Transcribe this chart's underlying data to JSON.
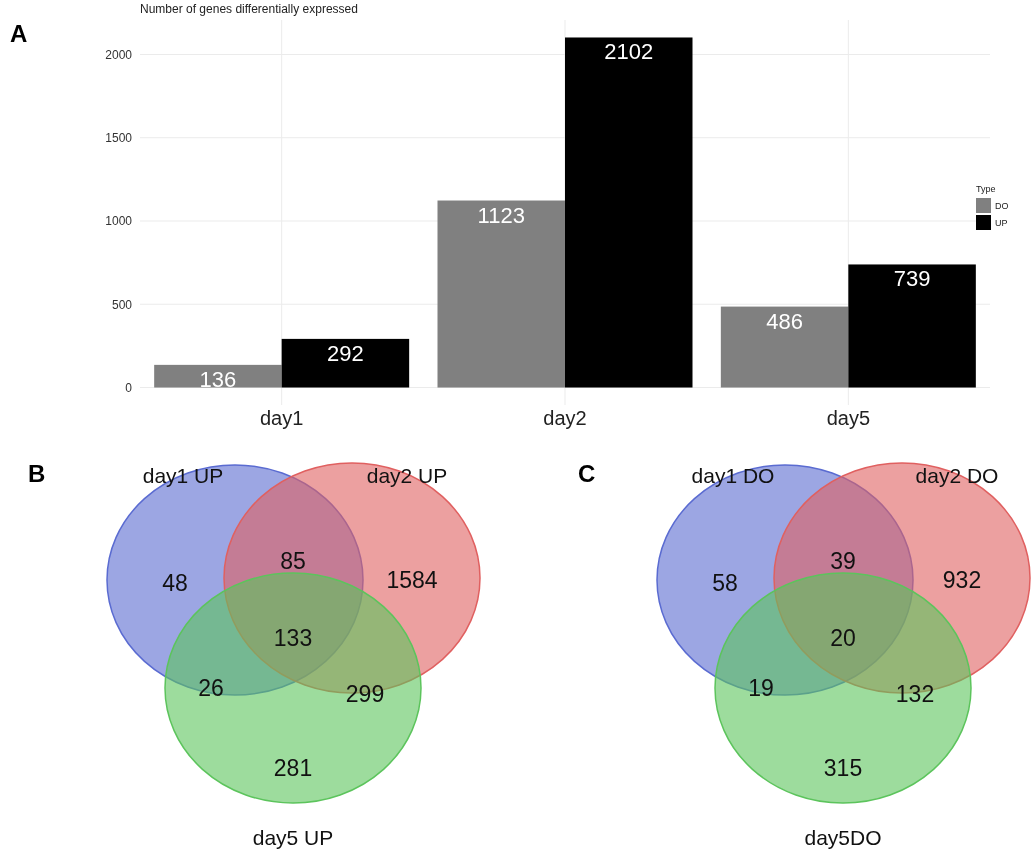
{
  "chart_data": [
    {
      "type": "bar",
      "ylabel": "Number of genes differentially expressed",
      "annotations": [
        "A"
      ],
      "categories": [
        "day1",
        "day2",
        "day5"
      ],
      "series": [
        {
          "name": "DO",
          "color": "#808080",
          "values": [
            136,
            1123,
            486
          ]
        },
        {
          "name": "UP",
          "color": "#000000",
          "values": [
            292,
            2102,
            739
          ]
        }
      ],
      "ylim": [
        -105,
        2207
      ],
      "yticks": [
        0,
        500,
        1000,
        1500,
        2000
      ],
      "grid": true,
      "legend": "right",
      "legend_title": "Type",
      "data_labels": true
    },
    {
      "type": "other",
      "annotations": [
        "B",
        "48",
        "85",
        "1584",
        "133",
        "26",
        "299",
        "281"
      ],
      "categories": [
        "day1 UP",
        "day2 UP",
        "day5 UP"
      ],
      "colors": [
        "#5a6bd1",
        "#e06060",
        "#5cc45c"
      ]
    },
    {
      "type": "other",
      "annotations": [
        "C",
        "58",
        "39",
        "932",
        "20",
        "19",
        "132",
        "315"
      ],
      "categories": [
        "day1 DO",
        "day2 DO",
        "day5DO"
      ],
      "colors": [
        "#5a6bd1",
        "#e06060",
        "#5cc45c"
      ]
    }
  ]
}
